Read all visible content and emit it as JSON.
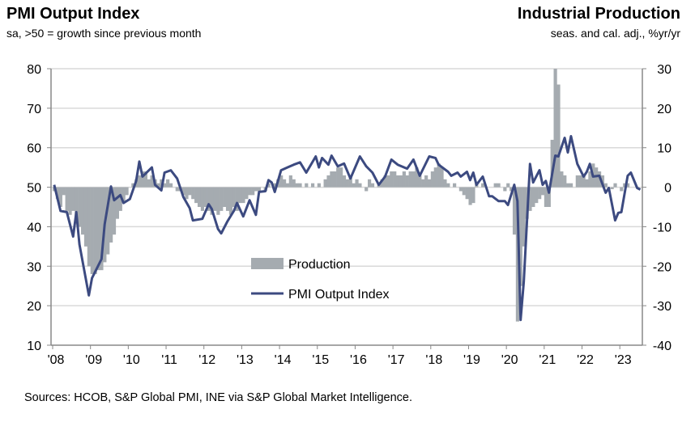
{
  "chart_data": {
    "type": "bar+line",
    "left_title": "PMI Output Index",
    "left_subtitle": "sa, >50 = growth since previous month",
    "right_title": "Industrial Production",
    "right_subtitle": "seas. and cal. adj., %yr/yr",
    "source": "Sources: HCOB, S&P Global PMI, INE via S&P Global Market Intelligence.",
    "left_axis": {
      "min": 10,
      "max": 80,
      "ticks": [
        "80",
        "70",
        "60",
        "50",
        "40",
        "30",
        "20",
        "10"
      ]
    },
    "right_axis": {
      "min": -40,
      "max": 30,
      "ticks": [
        "30",
        "20",
        "10",
        "0",
        "-10",
        "-20",
        "-30",
        "-40"
      ]
    },
    "x_ticks": [
      "'08",
      "'09",
      "'10",
      "'11",
      "'12",
      "'13",
      "'14",
      "'15",
      "'16",
      "'17",
      "'18",
      "'19",
      "'20",
      "'21",
      "'22",
      "'23"
    ],
    "grid": true,
    "legend_placement": "center",
    "colors": {
      "production": "#a5abb0",
      "pmi": "#3c4a80",
      "grid": "#d9d9d9"
    },
    "series": [
      {
        "name": "Production",
        "type": "bar",
        "axis": "right",
        "start": "2008-01",
        "monthly_values": [
          -1,
          -3,
          -5,
          -2,
          -6,
          -7,
          -6,
          -9,
          -10,
          -12,
          -15,
          -20,
          -22,
          -22,
          -21,
          -21,
          -19,
          -17,
          -14,
          -12,
          -8,
          -6,
          -4,
          -2,
          0,
          1,
          2,
          3,
          4,
          4,
          2,
          3,
          2,
          1,
          2,
          1,
          2,
          1,
          0,
          -1,
          -1,
          -2,
          -3,
          -2,
          -3,
          -4,
          -5,
          -6,
          -5,
          -6,
          -7,
          -6,
          -7,
          -6,
          -5,
          -6,
          -7,
          -5,
          -6,
          -4,
          -4,
          -3,
          -2,
          -2,
          -1,
          -1,
          0,
          -1,
          1,
          0,
          1,
          2,
          3,
          2,
          1,
          3,
          2,
          1,
          1,
          0,
          1,
          0,
          1,
          0,
          1,
          0,
          2,
          3,
          4,
          4,
          5,
          5,
          3,
          2,
          3,
          1,
          2,
          1,
          0,
          -1,
          2,
          1,
          0,
          1,
          2,
          3,
          3,
          4,
          4,
          3,
          3,
          4,
          3,
          4,
          4,
          5,
          3,
          2,
          3,
          2,
          4,
          5,
          6,
          5,
          2,
          1,
          0,
          1,
          0,
          -1,
          -2,
          -3,
          -4.5,
          -4,
          1,
          0,
          1,
          0,
          0,
          0,
          1,
          1,
          0,
          -1,
          1,
          -1,
          -12,
          -34,
          -25,
          -15,
          -8,
          -6,
          -5,
          -4,
          -3,
          -2,
          -5,
          -5,
          12,
          30,
          26,
          4,
          3,
          1,
          1,
          0,
          3,
          3,
          3,
          2,
          4,
          6,
          5,
          4,
          3,
          1,
          0,
          -0.5,
          1,
          0,
          -1,
          1,
          1,
          0
        ]
      },
      {
        "name": "PMI Output Index",
        "type": "line",
        "axis": "left",
        "points": [
          [
            "2008-01",
            50.6
          ],
          [
            "2008-03",
            44.0
          ],
          [
            "2008-05",
            43.7
          ],
          [
            "2008-07",
            37.5
          ],
          [
            "2008-08",
            43.7
          ],
          [
            "2008-09",
            35.5
          ],
          [
            "2008-12",
            22.6
          ],
          [
            "2009-01",
            27.0
          ],
          [
            "2009-04",
            31.8
          ],
          [
            "2009-05",
            40.6
          ],
          [
            "2009-07",
            50.2
          ],
          [
            "2009-08",
            46.7
          ],
          [
            "2009-10",
            48.0
          ],
          [
            "2009-11",
            46.0
          ],
          [
            "2010-01",
            47.0
          ],
          [
            "2010-03",
            51.6
          ],
          [
            "2010-04",
            56.5
          ],
          [
            "2010-05",
            52.7
          ],
          [
            "2010-08",
            55.0
          ],
          [
            "2010-09",
            50.6
          ],
          [
            "2010-11",
            49.2
          ],
          [
            "2010-12",
            53.7
          ],
          [
            "2011-02",
            54.3
          ],
          [
            "2011-04",
            52.2
          ],
          [
            "2011-06",
            47.5
          ],
          [
            "2011-08",
            44.7
          ],
          [
            "2011-09",
            41.6
          ],
          [
            "2011-12",
            42.0
          ],
          [
            "2012-02",
            45.7
          ],
          [
            "2012-03",
            44.5
          ],
          [
            "2012-05",
            39.4
          ],
          [
            "2012-06",
            38.3
          ],
          [
            "2012-08",
            41.4
          ],
          [
            "2012-10",
            44.0
          ],
          [
            "2012-11",
            46.0
          ],
          [
            "2013-01",
            42.6
          ],
          [
            "2013-03",
            46.7
          ],
          [
            "2013-05",
            43.0
          ],
          [
            "2013-06",
            48.8
          ],
          [
            "2013-08",
            49.0
          ],
          [
            "2013-09",
            51.8
          ],
          [
            "2013-10",
            51.2
          ],
          [
            "2013-11",
            48.8
          ],
          [
            "2014-01",
            54.3
          ],
          [
            "2014-03",
            55.0
          ],
          [
            "2014-05",
            55.7
          ],
          [
            "2014-07",
            56.3
          ],
          [
            "2014-09",
            53.7
          ],
          [
            "2014-12",
            57.8
          ],
          [
            "2015-01",
            55.0
          ],
          [
            "2015-02",
            57.4
          ],
          [
            "2015-04",
            55.7
          ],
          [
            "2015-05",
            58.0
          ],
          [
            "2015-07",
            55.3
          ],
          [
            "2015-09",
            56.0
          ],
          [
            "2015-11",
            52.2
          ],
          [
            "2016-02",
            57.8
          ],
          [
            "2016-04",
            55.3
          ],
          [
            "2016-06",
            53.7
          ],
          [
            "2016-08",
            50.6
          ],
          [
            "2016-10",
            52.7
          ],
          [
            "2016-12",
            57.0
          ],
          [
            "2017-02",
            55.7
          ],
          [
            "2017-05",
            54.7
          ],
          [
            "2017-07",
            57.0
          ],
          [
            "2017-09",
            52.9
          ],
          [
            "2017-12",
            57.8
          ],
          [
            "2018-02",
            57.4
          ],
          [
            "2018-03",
            55.7
          ],
          [
            "2018-06",
            53.9
          ],
          [
            "2018-07",
            52.9
          ],
          [
            "2018-09",
            53.7
          ],
          [
            "2018-10",
            52.7
          ],
          [
            "2018-12",
            53.9
          ],
          [
            "2019-01",
            51.8
          ],
          [
            "2019-02",
            53.7
          ],
          [
            "2019-03",
            50.6
          ],
          [
            "2019-05",
            52.7
          ],
          [
            "2019-07",
            47.7
          ],
          [
            "2019-08",
            47.7
          ],
          [
            "2019-10",
            46.5
          ],
          [
            "2019-12",
            46.5
          ],
          [
            "2020-01",
            45.5
          ],
          [
            "2020-03",
            50.6
          ],
          [
            "2020-04",
            46.5
          ],
          [
            "2020-05",
            16.4
          ],
          [
            "2020-06",
            26.0
          ],
          [
            "2020-08",
            55.9
          ],
          [
            "2020-09",
            51.2
          ],
          [
            "2020-11",
            54.3
          ],
          [
            "2020-12",
            50.6
          ],
          [
            "2021-01",
            51.6
          ],
          [
            "2021-02",
            48.6
          ],
          [
            "2021-04",
            58.0
          ],
          [
            "2021-05",
            57.8
          ],
          [
            "2021-07",
            62.5
          ],
          [
            "2021-08",
            58.8
          ],
          [
            "2021-09",
            62.9
          ],
          [
            "2021-11",
            55.9
          ],
          [
            "2022-01",
            52.7
          ],
          [
            "2022-02",
            53.9
          ],
          [
            "2022-03",
            55.9
          ],
          [
            "2022-04",
            52.7
          ],
          [
            "2022-06",
            52.9
          ],
          [
            "2022-08",
            48.6
          ],
          [
            "2022-09",
            49.8
          ],
          [
            "2022-11",
            41.6
          ],
          [
            "2022-12",
            43.5
          ],
          [
            "2023-01",
            43.7
          ],
          [
            "2023-03",
            52.9
          ],
          [
            "2023-04",
            53.7
          ],
          [
            "2023-06",
            49.8
          ],
          [
            "2023-07",
            49.4
          ]
        ]
      }
    ]
  }
}
